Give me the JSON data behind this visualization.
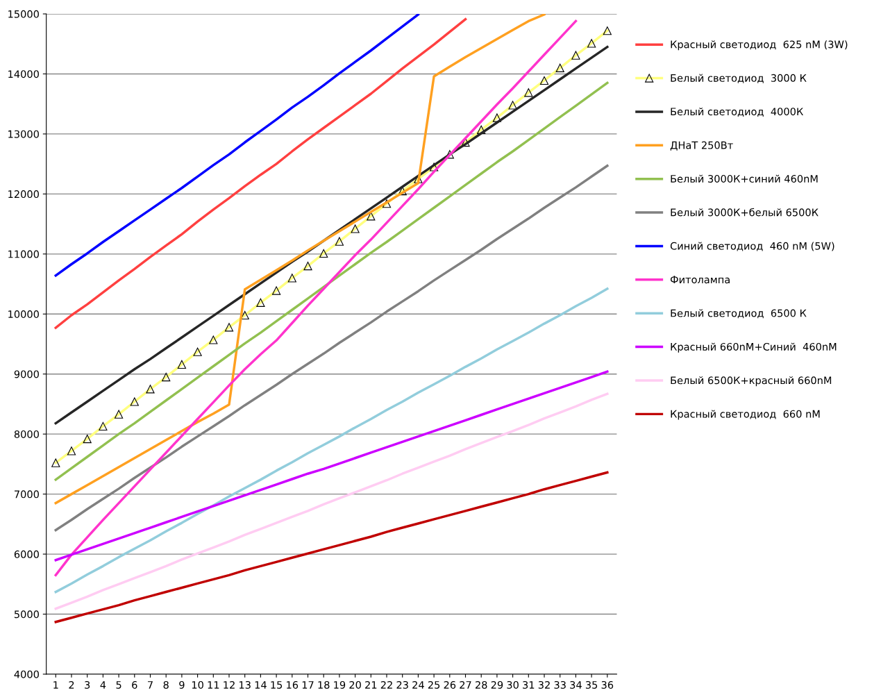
{
  "chart_data": {
    "type": "line",
    "categories": [
      "1",
      "2",
      "3",
      "4",
      "5",
      "6",
      "7",
      "8",
      "9",
      "10",
      "11",
      "12",
      "13",
      "14",
      "15",
      "16",
      "17",
      "18",
      "19",
      "20",
      "21",
      "22",
      "23",
      "24",
      "25",
      "26",
      "27",
      "28",
      "29",
      "30",
      "31",
      "32",
      "33",
      "34",
      "35",
      "36"
    ],
    "ylim": [
      4000,
      15000
    ],
    "yticks": [
      4000,
      5000,
      6000,
      7000,
      8000,
      9000,
      10000,
      11000,
      12000,
      13000,
      14000,
      15000
    ],
    "grid": "y",
    "legend": "right",
    "marker": "none",
    "line_style": "solid",
    "series": [
      {
        "name": "Красный светодиод  625 nM (3W)",
        "color": "#ff4040",
        "values": [
          9770,
          9980,
          10160,
          10360,
          10560,
          10750,
          10950,
          11140,
          11330,
          11540,
          11740,
          11930,
          12130,
          12320,
          12500,
          12710,
          12910,
          13100,
          13290,
          13480,
          13670,
          13880,
          14090,
          14290,
          14490,
          14700,
          14910,
          null,
          null,
          null,
          null,
          null,
          null,
          null,
          null,
          null
        ]
      },
      {
        "name": "Белый светодиод  3000 К",
        "color": "#ffff80",
        "marker": "triangle",
        "values": [
          7520,
          7720,
          7920,
          8130,
          8330,
          8540,
          8750,
          8950,
          9160,
          9370,
          9570,
          9780,
          9980,
          10190,
          10390,
          10600,
          10800,
          11010,
          11210,
          11420,
          11630,
          11840,
          12050,
          12250,
          12450,
          12660,
          12860,
          13070,
          13270,
          13480,
          13690,
          13890,
          14100,
          14310,
          14510,
          14720
        ]
      },
      {
        "name": "Белый светодиод  4000К",
        "color": "#262626",
        "values": [
          8180,
          8360,
          8540,
          8720,
          8900,
          9080,
          9250,
          9430,
          9610,
          9790,
          9970,
          10150,
          10330,
          10510,
          10690,
          10870,
          11040,
          11220,
          11400,
          11580,
          11760,
          11940,
          12120,
          12300,
          12480,
          12660,
          12830,
          13010,
          13190,
          13370,
          13550,
          13730,
          13910,
          14090,
          14270,
          14450
        ]
      },
      {
        "name": "ДНаТ 250Вт",
        "color": "#ffa020",
        "values": [
          6850,
          7000,
          7150,
          7300,
          7450,
          7600,
          7750,
          7900,
          8050,
          8200,
          8340,
          8490,
          10410,
          10570,
          10730,
          10890,
          11060,
          11220,
          11380,
          11540,
          11700,
          11860,
          12020,
          12180,
          13960,
          14120,
          14280,
          14430,
          14580,
          14730,
          14880,
          14990,
          null,
          null,
          null,
          null
        ]
      },
      {
        "name": "Белый 3000К+синий 460nM",
        "color": "#92c050",
        "values": [
          7240,
          7430,
          7620,
          7810,
          8000,
          8180,
          8370,
          8560,
          8750,
          8940,
          9130,
          9320,
          9510,
          9690,
          9880,
          10070,
          10260,
          10450,
          10640,
          10830,
          11020,
          11200,
          11390,
          11580,
          11770,
          11960,
          12150,
          12340,
          12530,
          12710,
          12900,
          13090,
          13280,
          13470,
          13660,
          13850
        ]
      },
      {
        "name": "Белый 3000К+белый 6500К",
        "color": "#808080",
        "values": [
          6400,
          6570,
          6750,
          6920,
          7090,
          7270,
          7440,
          7610,
          7790,
          7960,
          8130,
          8300,
          8480,
          8650,
          8820,
          9000,
          9170,
          9340,
          9520,
          9690,
          9860,
          10040,
          10210,
          10380,
          10560,
          10730,
          10900,
          11070,
          11250,
          11420,
          11590,
          11770,
          11940,
          12110,
          12290,
          12470
        ]
      },
      {
        "name": "Синий светодиод  460 nM (5W)",
        "color": "#0000ff",
        "values": [
          10640,
          10830,
          11010,
          11200,
          11380,
          11560,
          11740,
          11920,
          12100,
          12290,
          12480,
          12660,
          12860,
          13050,
          13240,
          13440,
          13620,
          13810,
          14010,
          14200,
          14390,
          14590,
          14790,
          14990,
          null,
          null,
          null,
          null,
          null,
          null,
          null,
          null,
          null,
          null,
          null,
          null
        ]
      },
      {
        "name": "Фитолампа",
        "color": "#ff33cc",
        "values": [
          5650,
          5990,
          6280,
          6570,
          6850,
          7130,
          7410,
          7690,
          7970,
          8250,
          8530,
          8810,
          9080,
          9330,
          9560,
          9850,
          10140,
          10420,
          10700,
          10980,
          11240,
          11520,
          11800,
          12080,
          12370,
          12650,
          12930,
          13210,
          13490,
          13760,
          14040,
          14320,
          14600,
          14880,
          null,
          null
        ]
      },
      {
        "name": "Белый светодиод  6500 К",
        "color": "#92cddc",
        "values": [
          5370,
          5510,
          5660,
          5800,
          5950,
          6090,
          6230,
          6380,
          6520,
          6670,
          6810,
          6960,
          7100,
          7240,
          7390,
          7530,
          7680,
          7820,
          7960,
          8110,
          8250,
          8400,
          8540,
          8690,
          8830,
          8970,
          9120,
          9260,
          9410,
          9550,
          9690,
          9840,
          9980,
          10130,
          10270,
          10420
        ]
      },
      {
        "name": "Красный 660nM+Синий  460nM",
        "color": "#cc00ff",
        "values": [
          5900,
          5990,
          6080,
          6170,
          6260,
          6350,
          6440,
          6530,
          6620,
          6710,
          6800,
          6890,
          6980,
          7070,
          7160,
          7250,
          7340,
          7420,
          7510,
          7600,
          7690,
          7780,
          7870,
          7960,
          8050,
          8140,
          8230,
          8320,
          8410,
          8500,
          8590,
          8680,
          8770,
          8860,
          8950,
          9040
        ]
      },
      {
        "name": "Белый 6500К+красный 660nM",
        "color": "#ffccf2",
        "values": [
          5090,
          5190,
          5290,
          5400,
          5500,
          5600,
          5700,
          5800,
          5910,
          6010,
          6110,
          6210,
          6320,
          6420,
          6520,
          6620,
          6720,
          6830,
          6930,
          7030,
          7130,
          7230,
          7340,
          7440,
          7540,
          7640,
          7750,
          7850,
          7950,
          8050,
          8150,
          8260,
          8360,
          8460,
          8570,
          8670
        ]
      },
      {
        "name": "Красный светодиод  660 nM",
        "color": "#c00000",
        "values": [
          4870,
          4940,
          5010,
          5080,
          5150,
          5230,
          5300,
          5370,
          5440,
          5510,
          5580,
          5650,
          5730,
          5800,
          5870,
          5940,
          6010,
          6080,
          6150,
          6220,
          6290,
          6370,
          6440,
          6510,
          6580,
          6650,
          6720,
          6790,
          6860,
          6930,
          7000,
          7080,
          7150,
          7220,
          7290,
          7360
        ]
      }
    ]
  }
}
